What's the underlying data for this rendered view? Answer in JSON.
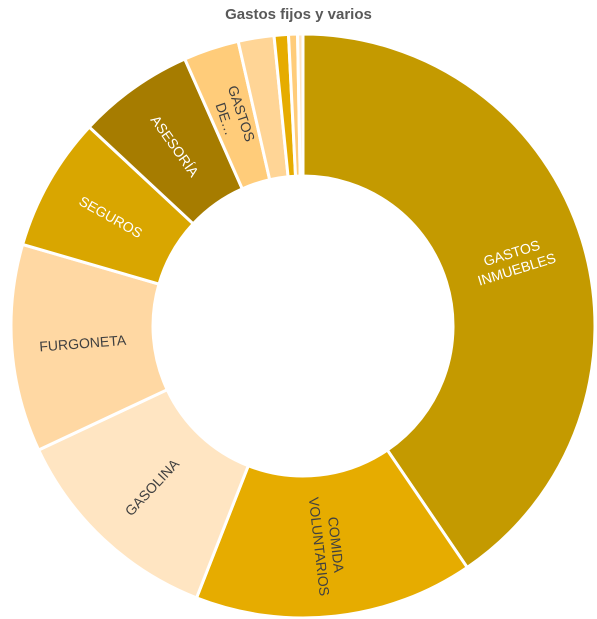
{
  "chart_data": {
    "type": "pie",
    "title": "Gastos fijos y varios",
    "donut": true,
    "categories": [
      "GASTOS INMUEBLES",
      "COMIDA VOLUNTARIOS",
      "GASOLINA",
      "FURGONETA",
      "SEGUROS",
      "ASESORÍA",
      "GASTOS DE…",
      "",
      "",
      "",
      ""
    ],
    "values": [
      40.9,
      15.6,
      12.2,
      11.6,
      7.5,
      6.5,
      3.1,
      2.0,
      0.8,
      0.5,
      0.3
    ],
    "colors": [
      "#C49A00",
      "#E6AC00",
      "#FFE5C2",
      "#FFD8A3",
      "#D9A600",
      "#A67C00",
      "#FFCC7A",
      "#FFD596",
      "#E6AC00",
      "#FFCC7A",
      "#FFE5C2"
    ],
    "label_colors": [
      "#ffffff",
      "#404040",
      "#404040",
      "#404040",
      "#ffffff",
      "#ffffff",
      "#404040",
      "#404040",
      "#404040",
      "#404040",
      "#404040"
    ],
    "legend": "none"
  }
}
